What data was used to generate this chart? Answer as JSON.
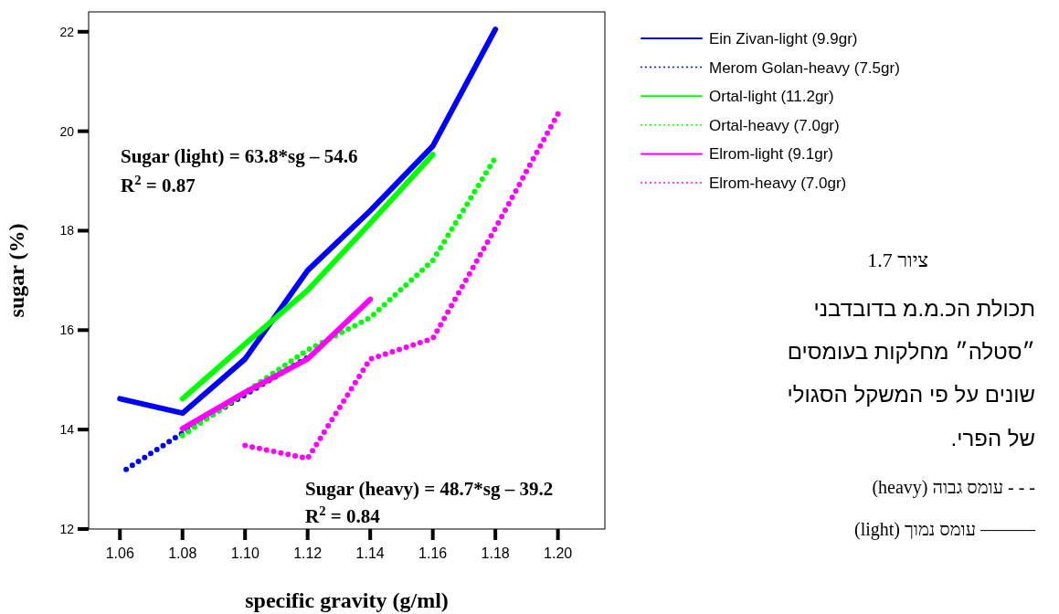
{
  "chart_data": {
    "type": "line",
    "xlabel": "specific gravity (g/ml)",
    "ylabel": "sugar (%)",
    "xlim": [
      1.05,
      1.215
    ],
    "ylim": [
      12,
      22.4
    ],
    "xticks": [
      1.06,
      1.08,
      {
        "value": 1.1,
        "label": "1.10"
      },
      1.12,
      1.14,
      1.16,
      1.18,
      {
        "value": 1.2,
        "label": "1.20"
      }
    ],
    "yticks": [
      12,
      14,
      16,
      18,
      20,
      22
    ],
    "grid": false,
    "legend": "top right",
    "marker": "none",
    "series": [
      {
        "name": "Ein Zivan-light (9.9gr)",
        "color": "#0000ff",
        "line_style": "solid",
        "x": [
          1.06,
          1.08,
          1.1,
          1.12,
          1.14,
          1.16,
          1.18
        ],
        "values": [
          14.62,
          14.33,
          15.42,
          17.2,
          18.4,
          19.7,
          22.05
        ]
      },
      {
        "name": "Merom Golan-heavy (7.5gr)",
        "color": "#0000ff",
        "line_style": "dotted",
        "x": [
          1.062,
          1.08,
          1.1,
          1.12
        ],
        "values": [
          13.2,
          13.93,
          14.7,
          15.45
        ]
      },
      {
        "name": "Ortal-light (11.2gr)",
        "color": "#00ff00",
        "line_style": "solid",
        "x": [
          1.08,
          1.1,
          1.12,
          1.14,
          1.16
        ],
        "values": [
          14.62,
          15.72,
          16.8,
          18.15,
          19.53
        ]
      },
      {
        "name": "Ortal-heavy (7.0gr)",
        "color": "#00ff00",
        "line_style": "dotted",
        "x": [
          1.08,
          1.1,
          1.12,
          1.14,
          1.16,
          1.18
        ],
        "values": [
          13.88,
          14.75,
          15.6,
          16.25,
          17.4,
          19.47
        ]
      },
      {
        "name": "Elrom-light (9.1gr)",
        "color": "#ff00ff",
        "line_style": "solid",
        "x": [
          1.08,
          1.1,
          1.12,
          1.14
        ],
        "values": [
          14.02,
          14.75,
          15.42,
          16.62
        ]
      },
      {
        "name": "Elrom-heavy (7.0gr)",
        "color": "#ff00ff",
        "line_style": "dotted",
        "x": [
          1.1,
          1.12,
          1.14,
          1.16,
          1.18,
          1.2
        ],
        "values": [
          13.68,
          13.42,
          15.42,
          15.83,
          18.05,
          20.35
        ]
      }
    ],
    "annotations": [
      "Sugar (light) = 63.8*sg – 54.6",
      "R$^{2}$ = 0.87",
      "Sugar (heavy) = 48.7*sg – 39.2",
      "R$^{2}$ = 0.84",
      "ציור 1.7",
      "תכולת הכ.מ.מ בדובדבני",
      "״סטלה״ מחלקות בעומסים",
      "שונים על פי המשקל הסגולי",
      "של הפרי.",
      "- - -  עומס גבוה (heavy)",
      "——— עומס נמוך (light)"
    ]
  }
}
